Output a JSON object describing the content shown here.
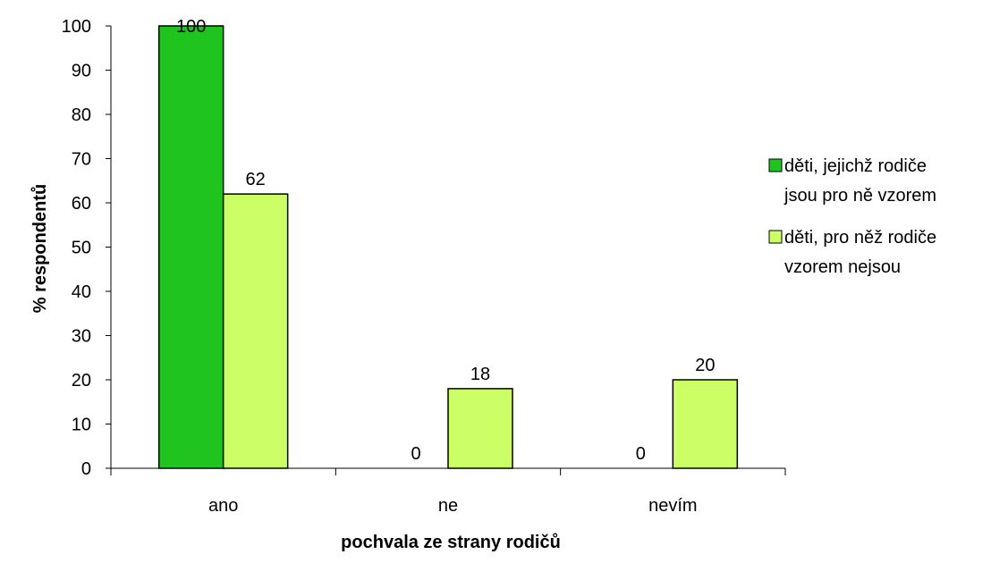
{
  "chart_data": {
    "type": "bar",
    "title": "",
    "xlabel": "pochvala ze strany rodičů",
    "ylabel": "% respondentů",
    "categories": [
      "ano",
      "ne",
      "nevím"
    ],
    "ylim": [
      0,
      100
    ],
    "yticks": [
      0,
      10,
      20,
      30,
      40,
      50,
      60,
      70,
      80,
      90,
      100
    ],
    "grid": false,
    "legend_position": "right",
    "series": [
      {
        "name": "děti, jejichž rodiče jsou pro ně vzorem",
        "legend_lines": [
          "děti, jejichž rodiče",
          "jsou pro ně vzorem"
        ],
        "values": [
          100,
          0,
          0
        ],
        "color": "#1fc41f"
      },
      {
        "name": "děti, pro něž rodiče vzorem nejsou",
        "legend_lines": [
          "děti, pro něž rodiče",
          "vzorem nejsou"
        ],
        "values": [
          62,
          18,
          20
        ],
        "color": "#ccff66"
      }
    ]
  }
}
